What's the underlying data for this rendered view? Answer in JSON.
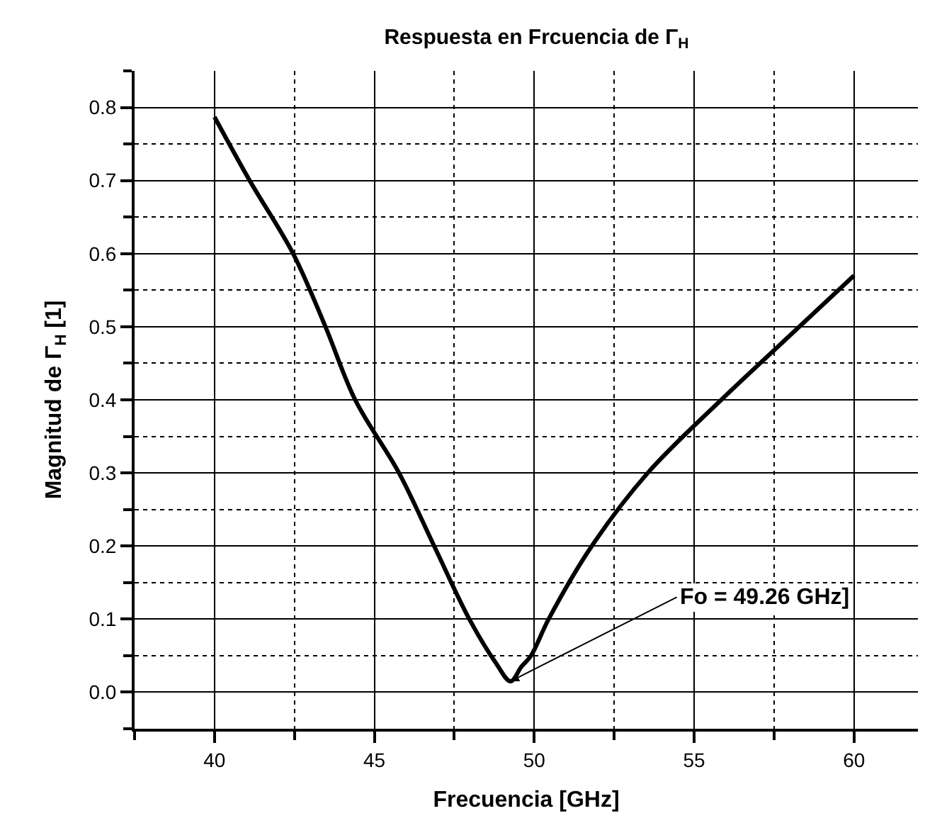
{
  "chart_data": {
    "type": "line",
    "title": "Respuesta en Frcuencia de Γ$_{H}$",
    "xlabel": "Frecuencia [GHz]",
    "ylabel": "Magnitud de Γ$_{H}$ [1]",
    "x": [
      40,
      41.1,
      42.46,
      43.47,
      44.4,
      45.77,
      46.87,
      47.97,
      48.8,
      49.26,
      49.6,
      49.9,
      50.45,
      51.8,
      53.55,
      55.85,
      57.8,
      60
    ],
    "series": [
      {
        "color": "#000000",
        "values": [
          0.787,
          0.7,
          0.6,
          0.5,
          0.4,
          0.3,
          0.2,
          0.1,
          0.04,
          0.015,
          0.035,
          0.05,
          0.1,
          0.2,
          0.3,
          0.4,
          0.48,
          0.57
        ]
      }
    ],
    "xlim": [
      37.5,
      62
    ],
    "ylim": [
      -0.05,
      0.85
    ],
    "xticks": [
      40,
      45,
      50,
      55,
      60
    ],
    "yticks": [
      {
        "value": 0,
        "label": "0.0"
      },
      0.1,
      0.2,
      0.3,
      0.4,
      0.5,
      0.6,
      0.7,
      0.8
    ],
    "annotations": [
      {
        "text": "Fo = 49.26 GHz]",
        "x": 49.26,
        "y": 0.015
      }
    ],
    "grid": true,
    "marker": "none",
    "line_style": "solid"
  }
}
